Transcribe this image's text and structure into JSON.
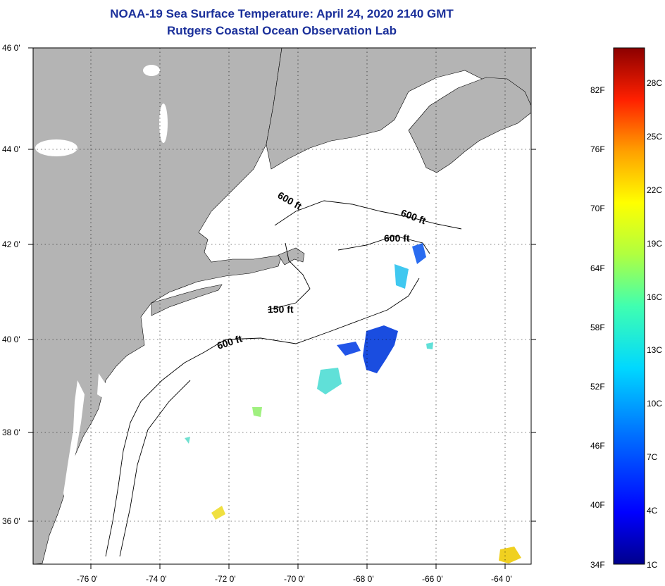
{
  "header": {
    "title": "NOAA-19 Sea Surface Temperature:  April 24, 2020 2140 GMT",
    "subtitle": "Rutgers Coastal Ocean Observation Lab"
  },
  "map": {
    "lat_labels": [
      "46 0'",
      "44 0'",
      "42 0'",
      "40 0'",
      "38 0'",
      "36 0'"
    ],
    "lon_labels": [
      "-76 0'",
      "-74 0'",
      "-72 0'",
      "-70 0'",
      "-68 0'",
      "-66 0'",
      "-64 0'"
    ],
    "contour_labels": [
      "600 ft",
      "600 ft",
      "600 ft",
      "150 ft",
      "600 ft"
    ],
    "land_color": "#b4b4b4",
    "ocean_color": "#ffffff"
  },
  "colorbar": {
    "fahrenheit": [
      "82F",
      "76F",
      "70F",
      "64F",
      "58F",
      "52F",
      "46F",
      "40F",
      "34F"
    ],
    "celsius": [
      "28C",
      "25C",
      "22C",
      "19C",
      "16C",
      "13C",
      "10C",
      "7C",
      "4C",
      "1C"
    ],
    "colors": [
      "#00008c",
      "#0000ff",
      "#0070ff",
      "#00d8ff",
      "#40ffb0",
      "#b0ff40",
      "#ffff00",
      "#ffa000",
      "#ff2000",
      "#8c0000"
    ]
  }
}
